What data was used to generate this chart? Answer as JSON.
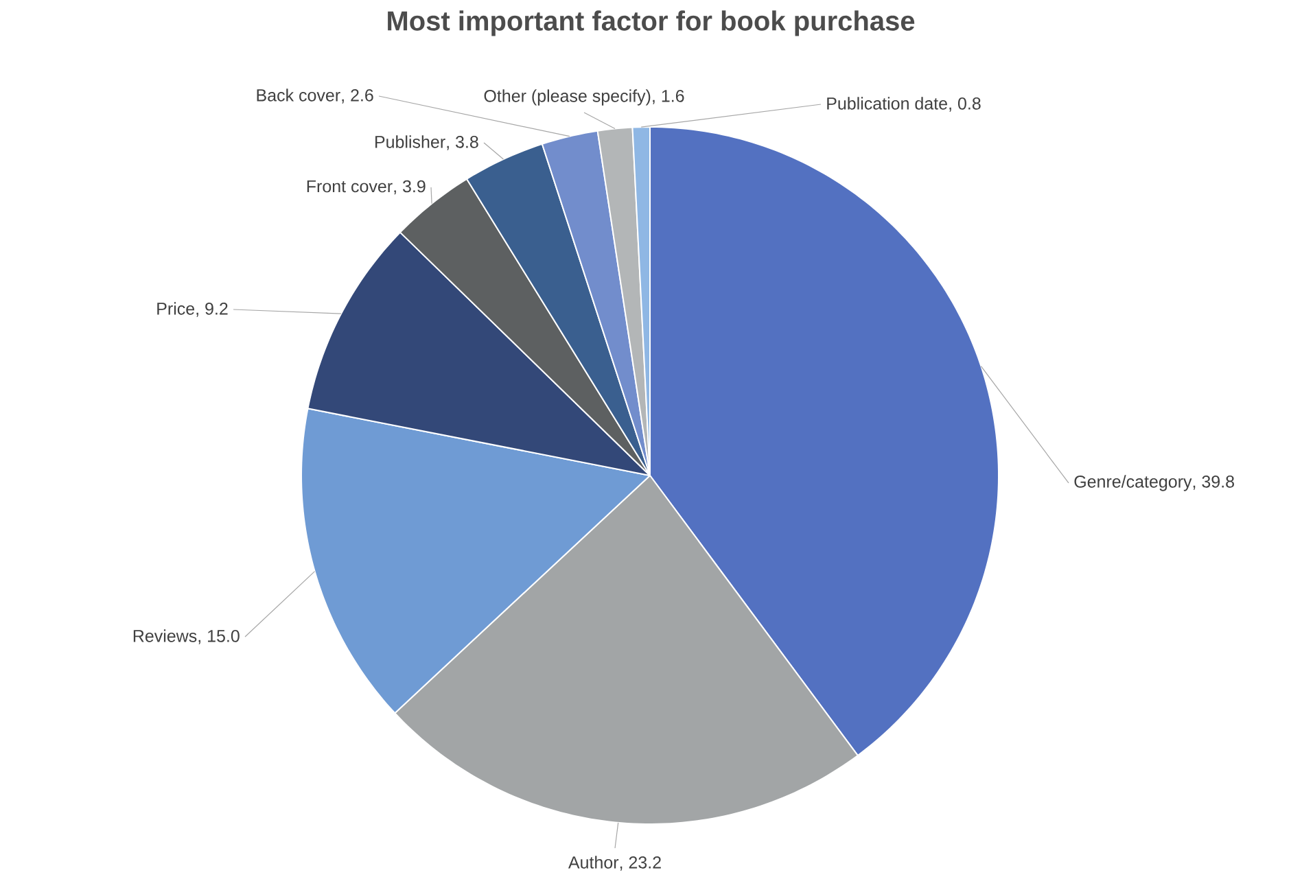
{
  "chart_data": {
    "type": "pie",
    "title": "Most important factor for book purchase",
    "categories": [
      "Genre/category",
      "Author",
      "Reviews",
      "Price",
      "Front cover",
      "Publisher",
      "Back cover",
      "Other (please specify)",
      "Publication date"
    ],
    "values": [
      39.8,
      23.2,
      15.0,
      9.2,
      3.9,
      3.8,
      2.6,
      1.6,
      0.8
    ],
    "colors": [
      "#5371c1",
      "#a2a5a6",
      "#6f9bd4",
      "#334878",
      "#5d6061",
      "#3a5f8f",
      "#728dcc",
      "#b3b6b7",
      "#8fb7e4"
    ],
    "value_labels": [
      ", 39.8",
      ", 23.2",
      ", 15.0",
      ", 9.2",
      ", 3.9",
      ", 3.8",
      ", 2.6",
      ", 1.6",
      ", 0.8"
    ]
  }
}
